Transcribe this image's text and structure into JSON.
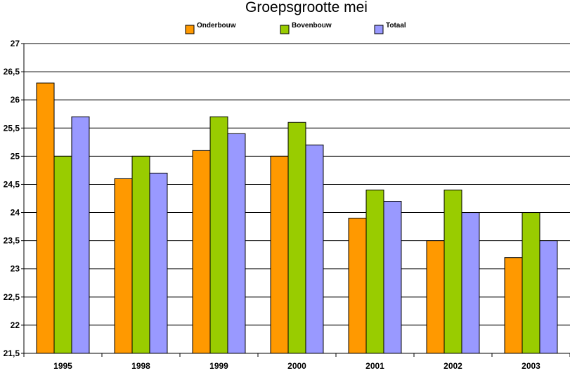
{
  "chart_data": {
    "type": "bar",
    "title": "Groepsgrootte mei",
    "xlabel": "",
    "ylabel": "",
    "categories": [
      "1995",
      "1998",
      "1999",
      "2000",
      "2001",
      "2002",
      "2003"
    ],
    "series": [
      {
        "name": "Onderbouw",
        "color": "#FF9900",
        "values": [
          26.3,
          24.6,
          25.1,
          25.0,
          23.9,
          23.5,
          23.2
        ]
      },
      {
        "name": "Bovenbouw",
        "color": "#99CC00",
        "values": [
          25.0,
          25.0,
          25.7,
          25.6,
          24.4,
          24.4,
          24.0
        ]
      },
      {
        "name": "Totaal",
        "color": "#9999FF",
        "values": [
          25.7,
          24.7,
          25.4,
          25.2,
          24.2,
          24.0,
          23.5
        ]
      }
    ],
    "ylim": [
      21.5,
      27
    ],
    "yticks": [
      "21,5",
      "22",
      "22,5",
      "23",
      "23,5",
      "24",
      "24,5",
      "25",
      "25,5",
      "26",
      "26,5",
      "27"
    ],
    "grid": true,
    "legend_position": "top"
  }
}
